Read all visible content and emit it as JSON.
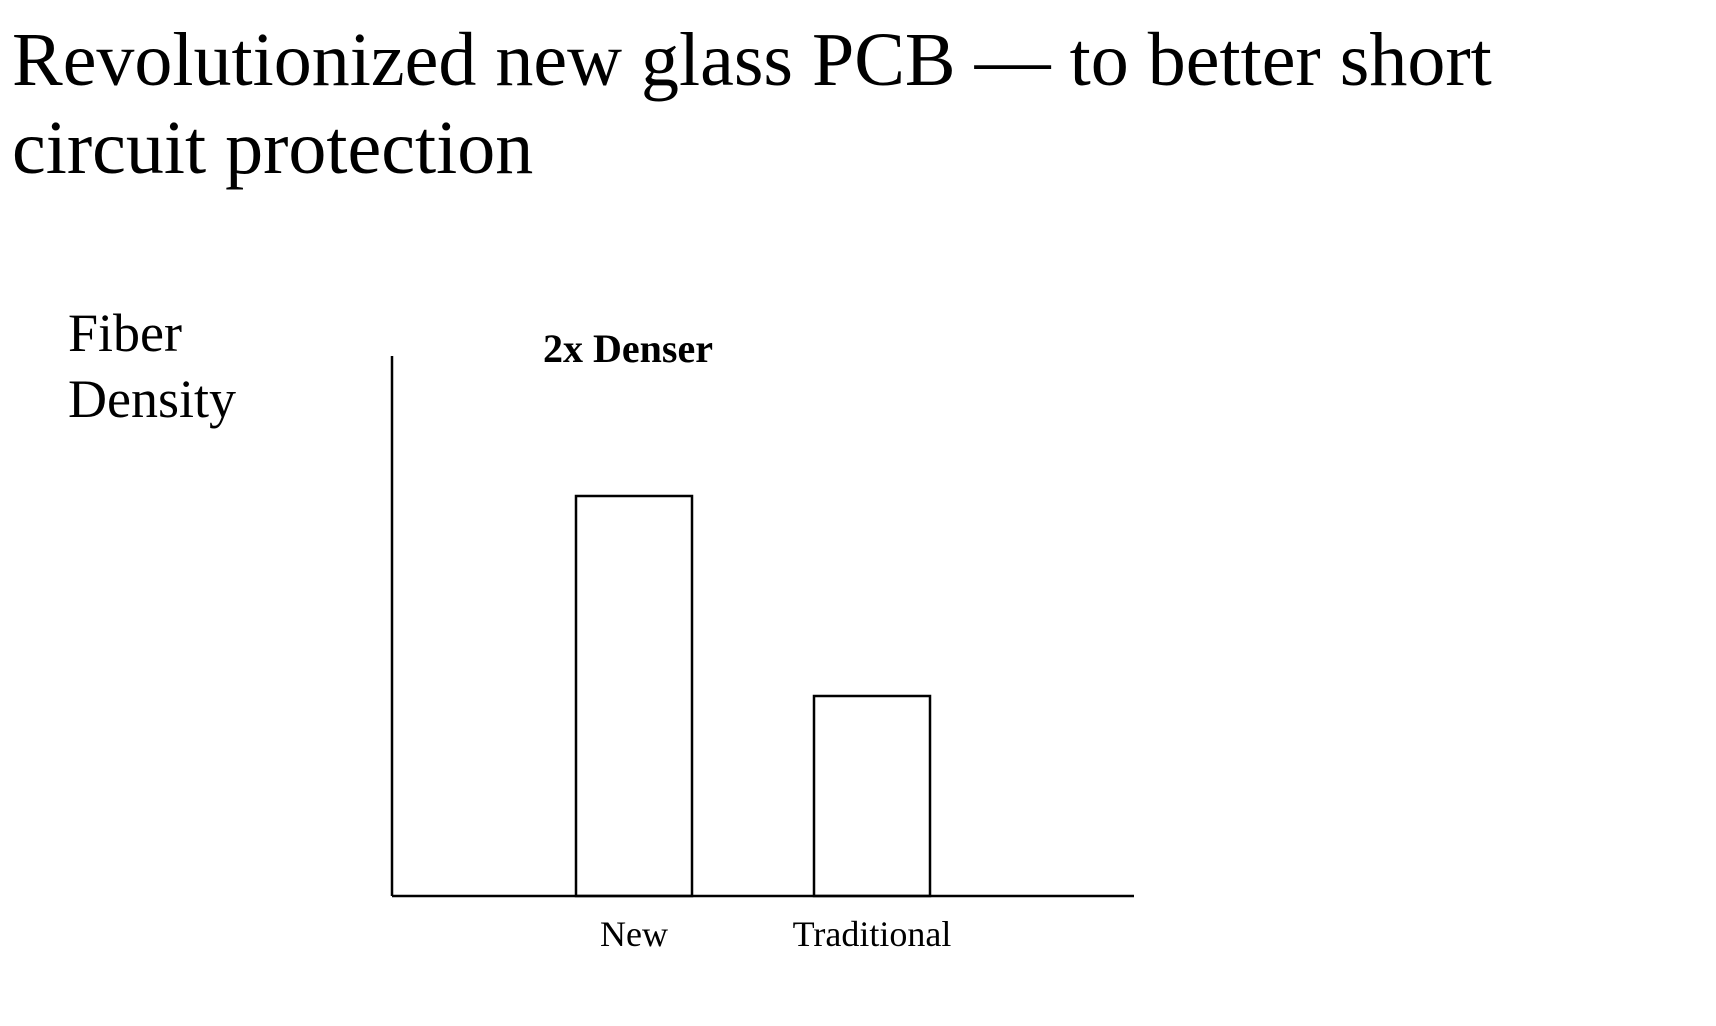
{
  "slide": {
    "title": "Revolutionized new glass PCB — to better short circuit protection"
  },
  "chart_data": {
    "type": "bar",
    "title": "",
    "ylabel": "Fiber Density",
    "xlabel": "",
    "categories": [
      "New",
      "Traditional"
    ],
    "values": [
      2,
      1
    ],
    "ylim": [
      0,
      2.7
    ],
    "grid": false,
    "y_ticks_shown": false,
    "annotations": [
      {
        "text": "2x Denser",
        "category": "New",
        "bold": true
      }
    ],
    "colors": {
      "bar_fill": "#ffffff",
      "bar_stroke": "#000000",
      "axis": "#000000"
    }
  }
}
